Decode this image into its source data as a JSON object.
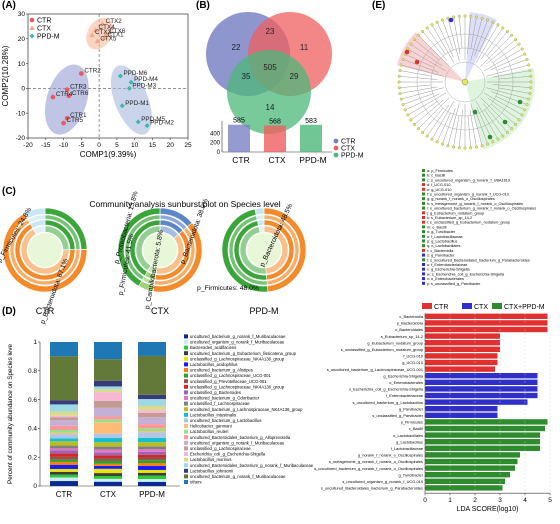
{
  "panels": {
    "A": "(A)",
    "B": "(B)",
    "C": "(C)",
    "D": "(D)",
    "E": "(E)"
  },
  "chart_data": [
    {
      "id": "A",
      "type": "scatter",
      "xlabel": "COMP1(9.39%)",
      "ylabel": "COMP2(10.28%)",
      "xlim": [
        -20,
        25
      ],
      "ylim": [
        -20,
        30
      ],
      "xticks": [
        "-20",
        "-15",
        "-10",
        "-5",
        "0",
        "5",
        "10",
        "15",
        "20",
        "25"
      ],
      "yticks": [
        "-20",
        "-10",
        "0",
        "10",
        "20",
        "30"
      ],
      "legend": [
        "CTR",
        "CTX",
        "PPD-M"
      ],
      "colors": {
        "CTR": "#e8585c",
        "CTX": "#f4a582",
        "PPD-M": "#3cb8a8"
      },
      "points": [
        {
          "label": "CTX2",
          "x": 1,
          "y": 26,
          "group": "CTX"
        },
        {
          "label": "CTX4",
          "x": -1,
          "y": 23.5,
          "group": "CTX"
        },
        {
          "label": "CTX6",
          "x": 2,
          "y": 22,
          "group": "CTX"
        },
        {
          "label": "CTX3",
          "x": -2,
          "y": 21.5,
          "group": "CTX"
        },
        {
          "label": "CTX1",
          "x": 1.5,
          "y": 20.5,
          "group": "CTX"
        },
        {
          "label": "CTX5",
          "x": -0.5,
          "y": 19,
          "group": "CTX"
        },
        {
          "label": "CTR2",
          "x": -5,
          "y": 6,
          "group": "CTR"
        },
        {
          "label": "CTR3",
          "x": -9,
          "y": -0.5,
          "group": "CTR"
        },
        {
          "label": "CTR6",
          "x": -8.5,
          "y": -3,
          "group": "CTR"
        },
        {
          "label": "CTR4",
          "x": -13,
          "y": -3.5,
          "group": "CTR"
        },
        {
          "label": "CTR1",
          "x": -9,
          "y": -12,
          "group": "CTR"
        },
        {
          "label": "CTR5",
          "x": -10,
          "y": -14,
          "group": "CTR"
        },
        {
          "label": "PPD-M6",
          "x": 6,
          "y": 5,
          "group": "PPD-M"
        },
        {
          "label": "PPD-M4",
          "x": 9,
          "y": 2.5,
          "group": "PPD-M"
        },
        {
          "label": "PPD-M3",
          "x": 8.5,
          "y": 0,
          "group": "PPD-M"
        },
        {
          "label": "PPD-M1",
          "x": 6.5,
          "y": -7,
          "group": "PPD-M"
        },
        {
          "label": "PPD-M5",
          "x": 11,
          "y": -13.5,
          "group": "PPD-M"
        },
        {
          "label": "PPD-M2",
          "x": 13.5,
          "y": -15,
          "group": "PPD-M"
        }
      ]
    },
    {
      "id": "B",
      "type": "venn",
      "regions": [
        {
          "region": "CTR only",
          "value": 22
        },
        {
          "region": "CTX only",
          "value": 11
        },
        {
          "region": "PPD-M only",
          "value": 14
        },
        {
          "region": "CTR∩CTX",
          "value": 23
        },
        {
          "region": "CTR∩PPD-M",
          "value": 35
        },
        {
          "region": "CTX∩PPD-M",
          "value": 29
        },
        {
          "region": "all",
          "value": 505
        }
      ],
      "totals": {
        "categories": [
          "CTR",
          "CTX",
          "PPD-M"
        ],
        "values": [
          585,
          568,
          583
        ],
        "yticks": [
          "0",
          "200",
          "400"
        ],
        "ylim": [
          0,
          600
        ]
      },
      "legend": [
        "CTR",
        "CTX",
        "PPD-M"
      ],
      "colors": {
        "CTR": "#7b82c4",
        "CTX": "#ef5f5f",
        "PPD-M": "#4cb87a"
      }
    },
    {
      "id": "C",
      "type": "sunburst",
      "title": "Community analysis sunburst plot on Species level",
      "groups": [
        {
          "name": "CTR",
          "labels": [
            {
              "text": "p_Firmicutes: 24.8%"
            },
            {
              "text": "p_Bacteroidota: 67.1%"
            }
          ],
          "slices": [
            {
              "name": "p_Firmicutes",
              "value": 24.8
            },
            {
              "name": "p_Bacteroidota",
              "value": 67.1
            },
            {
              "name": "others",
              "value": 8.1
            }
          ]
        },
        {
          "name": "CTX",
          "labels": [
            {
              "text": "p_Proteobacteria: 13.8%"
            },
            {
              "text": "p_Bacteroidota: 38.9%"
            },
            {
              "text": "p_Firmicutes: 41.5%"
            },
            {
              "text": "p_Campilobacterota: 5.8%"
            }
          ],
          "slices": [
            {
              "name": "p_Proteobacteria",
              "value": 13.8
            },
            {
              "name": "p_Bacteroidota",
              "value": 38.9
            },
            {
              "name": "p_Campilobacterota",
              "value": 5.8
            },
            {
              "name": "p_Firmicutes",
              "value": 41.5
            }
          ]
        },
        {
          "name": "PPD-M",
          "labels": [
            {
              "text": "p_Bacteroidota: 48.5%"
            },
            {
              "text": "p_Firmicutes: 48.0%"
            }
          ],
          "slices": [
            {
              "name": "p_Bacteroidota",
              "value": 48.5
            },
            {
              "name": "p_Firmicutes",
              "value": 48.0
            },
            {
              "name": "others",
              "value": 3.5
            }
          ]
        }
      ],
      "colors": {
        "p_Firmicutes": "#3aa63a",
        "p_Bacteroidota": "#f58a2a",
        "p_Proteobacteria": "#5b86c8",
        "p_Campilobacterota": "#9fd27a",
        "others": "#c8e6f5"
      }
    },
    {
      "id": "D",
      "type": "bar",
      "stacked": true,
      "ylabel": "Percent of community abundance on Species leve",
      "categories": [
        "CTR",
        "CTX",
        "PPD-M"
      ],
      "ylim": [
        0,
        1
      ],
      "yticks": [
        "0",
        "0.2",
        "0.4",
        "0.6",
        "0.8",
        "1"
      ],
      "legend": [
        "uncultured_bacterium_g_norank_f_Muribaculaceae",
        "uncultured_organism_g_norank_f_Muribaculaceae",
        "Bacteroides_acidifaciens",
        "uncultured_bacterium_g_Eubacterium_fissicatena_group",
        "unclassified_g_Lachnospiraceae_NK4A136_group",
        "Lactobacillus_acidophilus",
        "uncultured_bacterium_g_Alistipes",
        "unclassified_g_Lachnospiraceae_UCG-001",
        "unclassified_g_Prevotellaceae_UCG-001",
        "unclassified_g_Lachnospiraceae_NK4A136_group",
        "unclassified_g_Bacteroides",
        "uncultured_bacterium_g_Odoribacter",
        "unclassified_f_Lachnospiraceae",
        "uncultured_bacterium_g_Lachnospiraceae_NK4A136_group",
        "Lactobacillus_intestinalis",
        "uncultured_bacterium_g_Lactobacillus",
        "Helicobacter_ganmani",
        "Lactobacillus_reuteri",
        "uncultured_Bacteroidales_bacterium_g_Alloprevotella",
        "uncultured_organism_g_norank_f_Muribaculaceae",
        "unclassified_g_Lachnospiraceae",
        "Escherichia_coli_g_Escherichia-Shigella",
        "Lactobacillus_murinus",
        "uncultured_Bacteroidales_bacterium_g_norank_f_Muribaculaceae",
        "Lactobacillus_johnsonii",
        "uncultured_bacterium_g_norank_f_Muribaculaceae",
        "others"
      ],
      "colors": [
        "#0b2a8f",
        "#c8eefc",
        "#32c832",
        "#3c3c3c",
        "#e6e600",
        "#1a1aff",
        "#ff7f0e",
        "#2ca02c",
        "#8c564b",
        "#d62728",
        "#9467bd",
        "#e377c2",
        "#7f7f7f",
        "#bcbd22",
        "#17becf",
        "#aec7e8",
        "#ffbb78",
        "#98df8a",
        "#ff9896",
        "#c5b0d5",
        "#c49c94",
        "#f7b6d2",
        "#dbdb8d",
        "#9edae5",
        "#393b79",
        "#637939",
        "#1f77b4"
      ],
      "series_values": {
        "CTR": [
          0.035,
          0.025,
          0.02,
          0.02,
          0.02,
          0.03,
          0.02,
          0.015,
          0.02,
          0.025,
          0.02,
          0.015,
          0.02,
          0.03,
          0.02,
          0.03,
          0.01,
          0.02,
          0.03,
          0.04,
          0.02,
          0.01,
          0.03,
          0.05,
          0.03,
          0.31,
          0.1
        ],
        "CTX": [
          0.03,
          0.02,
          0.02,
          0.02,
          0.03,
          0.02,
          0.015,
          0.02,
          0.02,
          0.02,
          0.02,
          0.02,
          0.02,
          0.03,
          0.03,
          0.03,
          0.08,
          0.02,
          0.02,
          0.06,
          0.05,
          0.06,
          0.02,
          0.02,
          0.04,
          0.15,
          0.12
        ],
        "PPD-M": [
          0.03,
          0.02,
          0.025,
          0.02,
          0.02,
          0.03,
          0.02,
          0.02,
          0.02,
          0.02,
          0.02,
          0.02,
          0.02,
          0.03,
          0.03,
          0.04,
          0.01,
          0.02,
          0.03,
          0.05,
          0.03,
          0.02,
          0.03,
          0.05,
          0.03,
          0.28,
          0.1
        ]
      }
    },
    {
      "id": "E",
      "type": "bar",
      "orientation": "horizontal",
      "xlabel": "LDA SCORE(log10)",
      "xlim": [
        0,
        5
      ],
      "xticks": [
        "0",
        "1",
        "2",
        "3",
        "4",
        "5"
      ],
      "legend": [
        "CTR",
        "CTX",
        "CTX+PPD-M"
      ],
      "colors": {
        "CTR": "#e03030",
        "CTX": "#3030c8",
        "CTX+PPD-M": "#2e8b2e"
      },
      "bars": [
        {
          "label": "c_Bacteroidia",
          "value": 4.9,
          "group": "CTR"
        },
        {
          "label": "p_Bacteroidota",
          "value": 4.9,
          "group": "CTR"
        },
        {
          "label": "o_Bacteroidales",
          "value": 4.9,
          "group": "CTR"
        },
        {
          "label": "s_Eubacterium_sp_14-2",
          "value": 3.0,
          "group": "CTR"
        },
        {
          "label": "g_Eubacterium_nodatum_group",
          "value": 3.0,
          "group": "CTR"
        },
        {
          "label": "s_unclassified_g_Eubacterium_nodatum_group",
          "value": 3.0,
          "group": "CTR"
        },
        {
          "label": "f_UCG-010",
          "value": 2.9,
          "group": "CTR"
        },
        {
          "label": "g_UCG-010",
          "value": 2.9,
          "group": "CTR"
        },
        {
          "label": "s_uncultured_bacterium_g_Lachnospiraceae_UCG-001",
          "value": 2.8,
          "group": "CTR"
        },
        {
          "label": "g_Escherichia-Shigella",
          "value": 4.5,
          "group": "CTX"
        },
        {
          "label": "o_Enterobacterales",
          "value": 4.5,
          "group": "CTX"
        },
        {
          "label": "s_Escherichia_coli_g_Escherichia-Shigella",
          "value": 4.5,
          "group": "CTX"
        },
        {
          "label": "f_Enterobacteriaceae",
          "value": 4.5,
          "group": "CTX"
        },
        {
          "label": "s_uncultured_bacterium_g_Lactobacillus",
          "value": 4.1,
          "group": "CTX"
        },
        {
          "label": "g_Parvibacter",
          "value": 2.9,
          "group": "CTX"
        },
        {
          "label": "s_unclassified_g_Parvibacter",
          "value": 2.9,
          "group": "CTX"
        },
        {
          "label": "p_Firmicutes",
          "value": 4.9,
          "group": "CTX+PPD-M"
        },
        {
          "label": "c_Bacilli",
          "value": 4.8,
          "group": "CTX+PPD-M"
        },
        {
          "label": "o_Lactobacillales",
          "value": 4.6,
          "group": "CTX+PPD-M"
        },
        {
          "label": "g_Lactobacillus",
          "value": 4.6,
          "group": "CTX+PPD-M"
        },
        {
          "label": "f_Lactobacillaceae",
          "value": 4.6,
          "group": "CTX+PPD-M"
        },
        {
          "label": "g_norank_f_norank_o_Oscillospirales",
          "value": 3.8,
          "group": "CTX+PPD-M"
        },
        {
          "label": "s_metagenome_g_norank_f_norank_o_Oscillospirales",
          "value": 3.7,
          "group": "CTX+PPD-M"
        },
        {
          "label": "s_uncultured_bacterium_g_norank_f_norank_o_Oscillospirales",
          "value": 3.6,
          "group": "CTX+PPD-M"
        },
        {
          "label": "g_Turicibacter",
          "value": 3.4,
          "group": "CTX+PPD-M"
        },
        {
          "label": "s_uncultured_organism_g_norank_f_UCG-010",
          "value": 3.2,
          "group": "CTX+PPD-M"
        },
        {
          "label": "s_uncultured_Bacteroidales_bacterium_g_Parabacteroides",
          "value": 3.1,
          "group": "CTX+PPD-M"
        }
      ]
    }
  ],
  "cladogram_legend": [
    {
      "text": "a: p_Firmicutes",
      "group": "CTX+PPD-M"
    },
    {
      "text": "b: c_Bacilli",
      "group": "CTX+PPD-M"
    },
    {
      "text": "c: s_uncultured_organism_g_norank_f_UBA1819",
      "group": "CTX+PPD-M"
    },
    {
      "text": "d: f_UCG-010",
      "group": "CTR"
    },
    {
      "text": "e: g_UCG-010",
      "group": "CTR"
    },
    {
      "text": "f: s_uncultured_organism_g_norank_f_UCG-010",
      "group": "CTX+PPD-M"
    },
    {
      "text": "g: g_norank_f_norank_o_Oscillospirales",
      "group": "CTX+PPD-M"
    },
    {
      "text": "h: s_metagenome_g_norank_f_norank_o_Oscillospirales",
      "group": "CTX+PPD-M"
    },
    {
      "text": "i: s_uncultured_bacterium_g_norank_f_norank_o_Oscillospirales",
      "group": "CTX+PPD-M"
    },
    {
      "text": "j: g_Eubacterium_nodatum_group",
      "group": "CTR"
    },
    {
      "text": "k: s_Eubacterium_sp_14-2",
      "group": "CTR"
    },
    {
      "text": "l: s_unclassified_g_Eubacterium_nodatum_group",
      "group": "CTR"
    },
    {
      "text": "m: o_Bacilli",
      "group": "CTX+PPD-M"
    },
    {
      "text": "n: g_Turicibacter",
      "group": "CTX+PPD-M"
    },
    {
      "text": "o: f_Lactobacillaceae",
      "group": "CTX+PPD-M"
    },
    {
      "text": "p: g_Lactobacillus",
      "group": "CTX+PPD-M"
    },
    {
      "text": "q: o_Lactobacillales",
      "group": "CTX+PPD-M"
    },
    {
      "text": "r: c_Bacteroidia",
      "group": "CTR"
    },
    {
      "text": "s: g_Parvibacter",
      "group": "CTX"
    },
    {
      "text": "t: s_uncultured_Bacteroidales_bacterium_g_Parabacteroides",
      "group": "CTX+PPD-M"
    },
    {
      "text": "u: f_Enterobacteriaceae",
      "group": "CTX"
    },
    {
      "text": "v: g_Escherichia-Shigella",
      "group": "CTX"
    },
    {
      "text": "w: s_Escherichia_coli_g_Escherichia-Shigella",
      "group": "CTX"
    },
    {
      "text": "x: o_Enterobacterales",
      "group": "CTX"
    },
    {
      "text": "y: s_unclassified_g_Parvibacter",
      "group": "CTX"
    }
  ]
}
